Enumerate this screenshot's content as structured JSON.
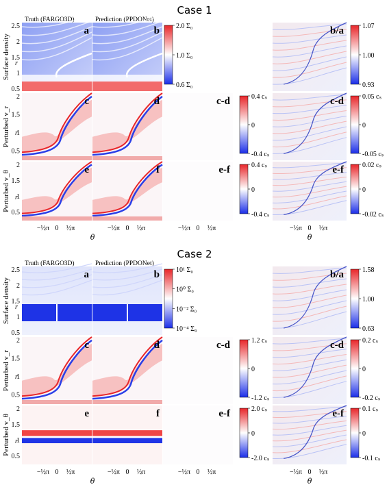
{
  "cases": [
    {
      "title": "Case 1",
      "col_titles": [
        "Truth (FARGO3D)",
        "Prediction (PPDONet)"
      ],
      "rows": [
        {
          "label": "Surface density",
          "letters": [
            "a",
            "b",
            "",
            "b/a"
          ],
          "cb_main": {
            "ticks": [
              "2.0 Σ₀",
              "1.0 Σ₀",
              "0.6 Σ₀"
            ]
          },
          "cb_err": {
            "ticks": [
              "1.07",
              "1.00",
              "0.93"
            ]
          }
        },
        {
          "label": "Perturbed v_r",
          "letters": [
            "c",
            "d",
            "c-d",
            "c-d"
          ],
          "cb_main": {
            "ticks": [
              "0.4 cₛ",
              "0",
              "-0.4 cₛ"
            ]
          },
          "cb_err": {
            "ticks": [
              "0.05 cₛ",
              "0",
              "-0.05 cₛ"
            ]
          }
        },
        {
          "label": "Perturbed v_θ",
          "letters": [
            "e",
            "f",
            "e-f",
            "e-f"
          ],
          "cb_main": {
            "ticks": [
              "0.4 cₛ",
              "0",
              "-0.4 cₛ"
            ]
          },
          "cb_err": {
            "ticks": [
              "0.02 cₛ",
              "0",
              "-0.02 cₛ"
            ]
          }
        }
      ]
    },
    {
      "title": "Case 2",
      "col_titles": [
        "Truth (FARGO3D)",
        "Prediction (PPDONet)"
      ],
      "rows": [
        {
          "label": "Surface density",
          "letters": [
            "a",
            "b",
            "",
            "b/a"
          ],
          "cb_main": {
            "ticks": [
              "10¹ Σ₀",
              "10⁰ Σ₀",
              "10⁻² Σ₀",
              "10⁻⁴ Σ₀"
            ]
          },
          "cb_err": {
            "ticks": [
              "1.58",
              "1.00",
              "0.63"
            ]
          }
        },
        {
          "label": "Perturbed v_r",
          "letters": [
            "c",
            "d",
            "c-d",
            "c-d"
          ],
          "cb_main": {
            "ticks": [
              "1.2 cₛ",
              "0",
              "-1.2 cₛ"
            ]
          },
          "cb_err": {
            "ticks": [
              "0.2 cₛ",
              "0",
              "-0.2 cₛ"
            ]
          }
        },
        {
          "label": "Perturbed v_θ",
          "letters": [
            "e",
            "f",
            "e-f",
            "e-f"
          ],
          "cb_main": {
            "ticks": [
              "2.0 cₛ",
              "0",
              "-2.0 cₛ"
            ]
          },
          "cb_err": {
            "ticks": [
              "0.1 cₛ",
              "0",
              "-0.1 cₛ"
            ]
          }
        }
      ]
    }
  ],
  "y_axis": {
    "label": "r",
    "ticks": [
      "2.5",
      "2",
      "1.5",
      "1",
      "0.5"
    ],
    "ticks_short": [
      "2",
      "1.5",
      "1",
      "0.5"
    ]
  },
  "x_axis": {
    "label": "θ",
    "ticks": [
      "−½π",
      "0",
      "½π"
    ]
  },
  "colors": {
    "red": "#e8262a",
    "blue": "#1b2ee8",
    "white": "#ffffff"
  }
}
